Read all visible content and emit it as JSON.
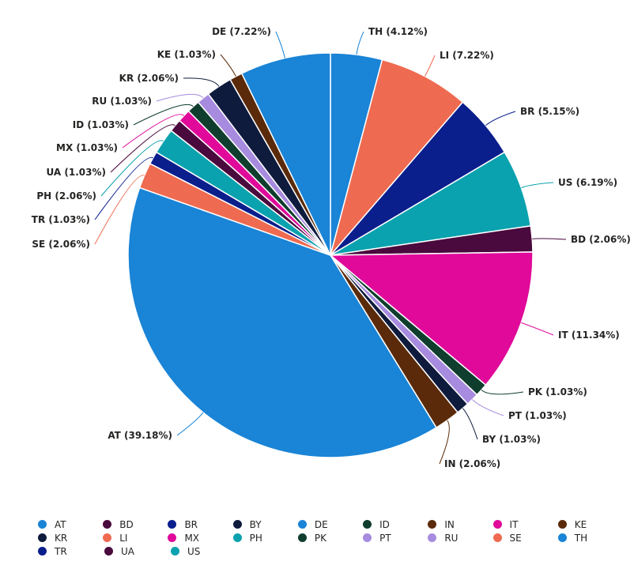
{
  "chart_data": {
    "type": "pie",
    "slices": [
      {
        "label": "TH",
        "display": "TH (4.12%)",
        "percent": 4.12,
        "color": "#118DFF"
      },
      {
        "label": "LI",
        "display": "LI (7.22%)",
        "percent": 7.22,
        "color": "#E66C37"
      },
      {
        "label": "BR",
        "display": "BR (5.15%)",
        "percent": 5.15,
        "color": "#12239E"
      },
      {
        "label": "US",
        "display": "US (6.19%)",
        "percent": 6.19,
        "color": "#1AAB40"
      },
      {
        "label": "BD",
        "display": "BD (2.06%)",
        "percent": 2.06,
        "color": "#6B007B"
      },
      {
        "label": "IT",
        "display": "IT (11.34%)",
        "percent": 11.34,
        "color": "#E044A7"
      },
      {
        "label": "PK",
        "display": "PK (1.03%)",
        "percent": 1.03,
        "color": "#1AAB40"
      },
      {
        "label": "PT",
        "display": "PT (1.03%)",
        "percent": 1.03,
        "color": "#B887AD"
      },
      {
        "label": "BY",
        "display": "BY (1.03%)",
        "percent": 1.03,
        "color": "#0F1B3D"
      },
      {
        "label": "IN",
        "display": "IN (2.06%)",
        "percent": 2.06,
        "color": "#744EC2"
      },
      {
        "label": "AT",
        "display": "AT (39.18%)",
        "percent": 39.18,
        "color": "#118DFF"
      },
      {
        "label": "SE",
        "display": "SE (2.06%)",
        "percent": 2.06,
        "color": "#E66C37"
      },
      {
        "label": "TR",
        "display": "TR (1.03%)",
        "percent": 1.03,
        "color": "#12239E"
      },
      {
        "label": "PH",
        "display": "PH (2.06%)",
        "percent": 2.06,
        "color": "#1AAB40"
      },
      {
        "label": "UA",
        "display": "UA (1.03%)",
        "percent": 1.03,
        "color": "#6B007B"
      },
      {
        "label": "MX",
        "display": "MX (1.03%)",
        "percent": 1.03,
        "color": "#E044A7"
      },
      {
        "label": "ID",
        "display": "ID (1.03%)",
        "percent": 1.03,
        "color": "#0F3D2E"
      },
      {
        "label": "RU",
        "display": "RU (1.03%)",
        "percent": 1.03,
        "color": "#A78BDE"
      },
      {
        "label": "KR",
        "display": "KR (2.06%)",
        "percent": 2.06,
        "color": "#0F1B3D"
      },
      {
        "label": "KE",
        "display": "KE (1.03%)",
        "percent": 1.03,
        "color": "#5A2A0A"
      },
      {
        "label": "DE",
        "display": "DE (7.22%)",
        "percent": 7.22,
        "color": "#1A84D6"
      }
    ],
    "legend": {
      "placement": "bottom-left",
      "items": [
        {
          "label": "AT",
          "color": "#1A84D6"
        },
        {
          "label": "BD",
          "color": "#4A0A3E"
        },
        {
          "label": "BR",
          "color": "#0A1E8C"
        },
        {
          "label": "BY",
          "color": "#0F1B3D"
        },
        {
          "label": "DE",
          "color": "#1A84D6"
        },
        {
          "label": "ID",
          "color": "#0F3D2E"
        },
        {
          "label": "IN",
          "color": "#5A2A0A"
        },
        {
          "label": "IT",
          "color": "#E0099A"
        },
        {
          "label": "KE",
          "color": "#5A2A0A"
        },
        {
          "label": "KR",
          "color": "#0F1B3D"
        },
        {
          "label": "LI",
          "color": "#EE6A50"
        },
        {
          "label": "MX",
          "color": "#E0099A"
        },
        {
          "label": "PH",
          "color": "#0AA2AE"
        },
        {
          "label": "PK",
          "color": "#0F3D2E"
        },
        {
          "label": "PT",
          "color": "#A78BDE"
        },
        {
          "label": "RU",
          "color": "#A78BDE"
        },
        {
          "label": "SE",
          "color": "#EE6A50"
        },
        {
          "label": "TH",
          "color": "#1A84D6"
        },
        {
          "label": "TR",
          "color": "#0A1E8C"
        },
        {
          "label": "UA",
          "color": "#4A0A3E"
        },
        {
          "label": "US",
          "color": "#0AA2AE"
        }
      ]
    }
  }
}
